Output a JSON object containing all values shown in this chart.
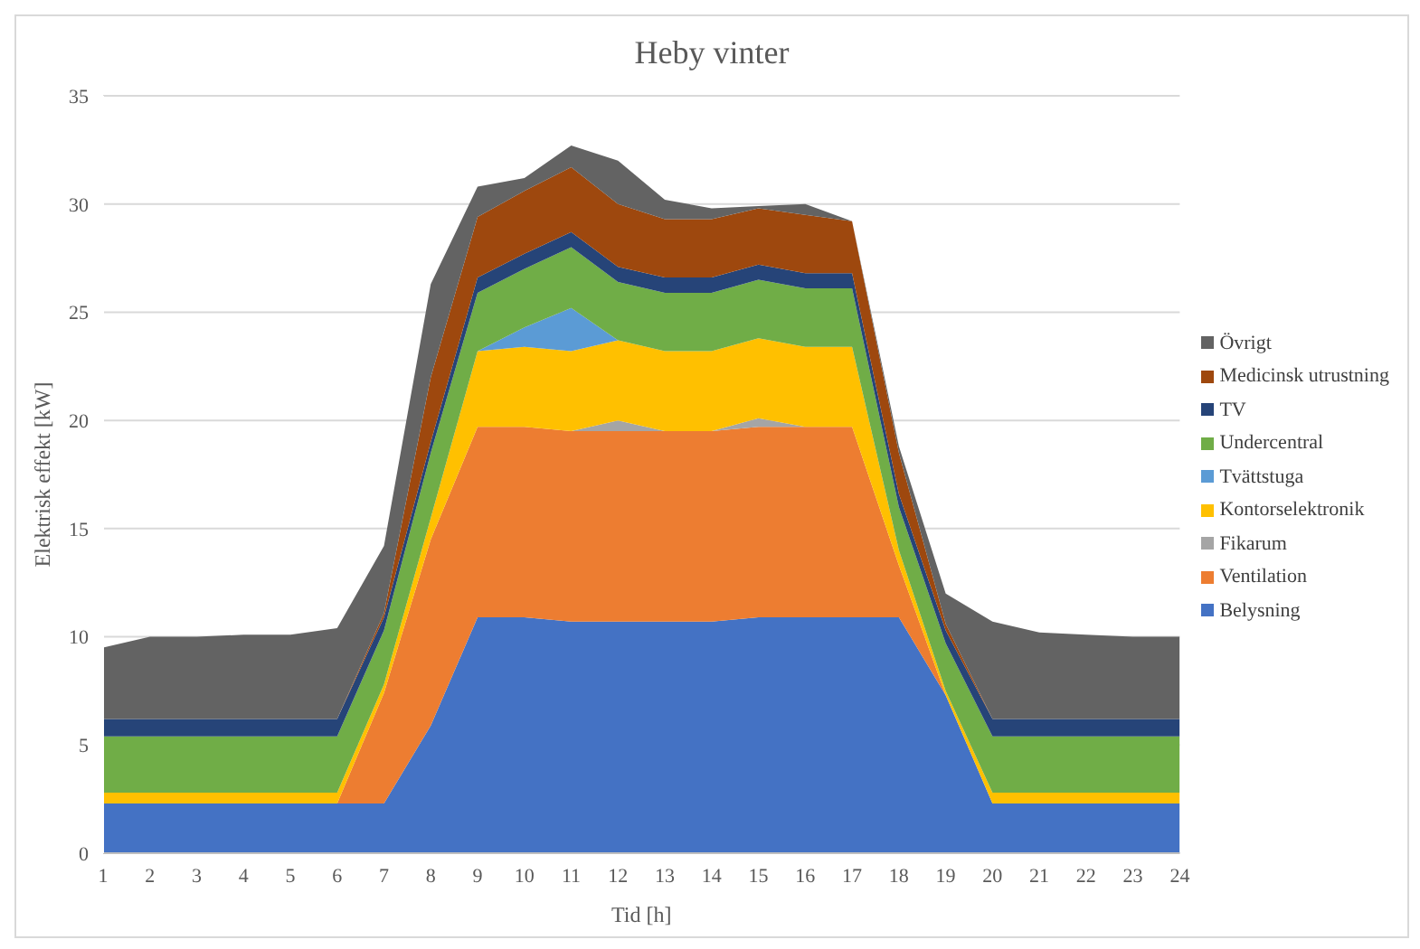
{
  "chart_data": {
    "type": "area",
    "stacked": true,
    "title": "Heby vinter",
    "xlabel": "Tid [h]",
    "ylabel": "Elektrisk effekt [kW]",
    "x": [
      1,
      2,
      3,
      4,
      5,
      6,
      7,
      8,
      9,
      10,
      11,
      12,
      13,
      14,
      15,
      16,
      17,
      18,
      19,
      20,
      21,
      22,
      23,
      24
    ],
    "xlim": [
      1,
      24
    ],
    "xticks": [
      1,
      2,
      3,
      4,
      5,
      6,
      7,
      8,
      9,
      10,
      11,
      12,
      13,
      14,
      15,
      16,
      17,
      18,
      19,
      20,
      21,
      22,
      23,
      24
    ],
    "ylim": [
      0,
      35
    ],
    "yticks": [
      0,
      5,
      10,
      15,
      20,
      25,
      30,
      35
    ],
    "grid": "y",
    "legend": "right",
    "series": [
      {
        "name": "Belysning",
        "color": "#4472c4",
        "values": [
          2.3,
          2.3,
          2.3,
          2.3,
          2.3,
          2.3,
          2.3,
          5.9,
          10.9,
          10.9,
          10.7,
          10.7,
          10.7,
          10.7,
          10.9,
          10.9,
          10.9,
          10.9,
          7.3,
          2.3,
          2.3,
          2.3,
          2.3,
          2.3
        ]
      },
      {
        "name": "Ventilation",
        "color": "#ed7d31",
        "values": [
          0,
          0,
          0,
          0,
          0,
          0,
          5.1,
          8.6,
          8.8,
          8.8,
          8.8,
          8.8,
          8.8,
          8.8,
          8.8,
          8.8,
          8.8,
          2.4,
          0,
          0,
          0,
          0,
          0,
          0
        ]
      },
      {
        "name": "Fikarum",
        "color": "#a5a5a5",
        "values": [
          0,
          0,
          0,
          0,
          0,
          0,
          0,
          0,
          0,
          0,
          0,
          0.5,
          0,
          0,
          0.4,
          0,
          0,
          0,
          0,
          0,
          0,
          0,
          0,
          0
        ]
      },
      {
        "name": "Kontorselektronik",
        "color": "#ffc000",
        "values": [
          0.5,
          0.5,
          0.5,
          0.5,
          0.5,
          0.5,
          0.4,
          1.0,
          3.5,
          3.7,
          3.7,
          3.7,
          3.7,
          3.7,
          3.7,
          3.7,
          3.7,
          0.7,
          0.2,
          0.5,
          0.5,
          0.5,
          0.5,
          0.5
        ]
      },
      {
        "name": "Tvättstuga",
        "color": "#5b9bd5",
        "values": [
          0,
          0,
          0,
          0,
          0,
          0,
          0,
          0,
          0,
          0.9,
          2.0,
          0,
          0,
          0,
          0,
          0,
          0,
          0,
          0,
          0,
          0,
          0,
          0,
          0
        ]
      },
      {
        "name": "Undercentral",
        "color": "#70ad47",
        "values": [
          2.6,
          2.6,
          2.6,
          2.6,
          2.6,
          2.6,
          2.5,
          3.0,
          2.7,
          2.7,
          2.8,
          2.7,
          2.7,
          2.7,
          2.7,
          2.7,
          2.7,
          2.0,
          2.2,
          2.6,
          2.6,
          2.6,
          2.6,
          2.6
        ]
      },
      {
        "name": "TV",
        "color": "#264478",
        "values": [
          0.8,
          0.8,
          0.8,
          0.8,
          0.8,
          0.8,
          0.6,
          0.5,
          0.7,
          0.7,
          0.7,
          0.7,
          0.7,
          0.7,
          0.7,
          0.7,
          0.7,
          0.6,
          0.6,
          0.8,
          0.8,
          0.8,
          0.8,
          0.8
        ]
      },
      {
        "name": "Medicinsk utrustning",
        "color": "#9e480e",
        "values": [
          0,
          0,
          0,
          0,
          0,
          0,
          0.2,
          3.0,
          2.8,
          2.9,
          3.0,
          2.9,
          2.7,
          2.7,
          2.6,
          2.7,
          2.4,
          1.9,
          0.3,
          0,
          0,
          0,
          0,
          0
        ]
      },
      {
        "name": "Övrigt",
        "color": "#636363",
        "values": [
          3.3,
          3.8,
          3.8,
          3.9,
          3.9,
          4.2,
          3.1,
          4.3,
          1.4,
          0.6,
          1.0,
          2.0,
          0.9,
          0.5,
          0.1,
          0.5,
          0,
          0.3,
          1.4,
          4.5,
          4.0,
          3.9,
          3.8,
          3.8
        ]
      }
    ]
  }
}
